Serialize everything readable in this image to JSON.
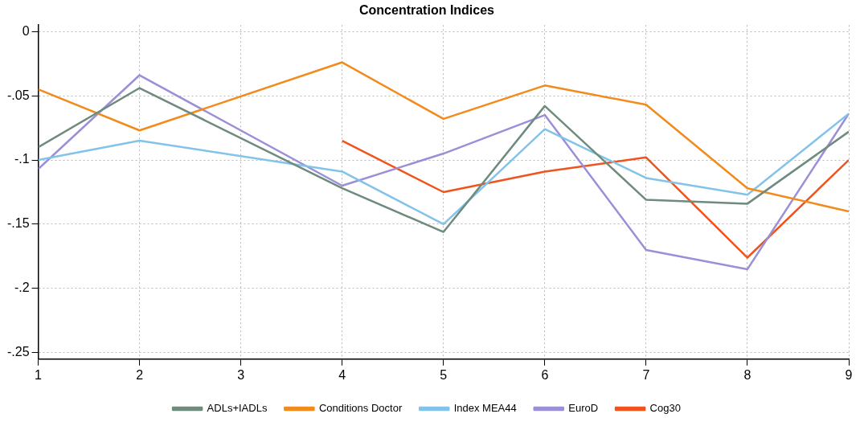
{
  "chart_data": {
    "type": "line",
    "title": "Concentration Indices",
    "x": [
      1,
      2,
      4,
      5,
      6,
      7,
      8,
      9
    ],
    "xlim": [
      1,
      9
    ],
    "xticks": [
      1,
      2,
      3,
      4,
      5,
      6,
      7,
      8,
      9
    ],
    "ylim": [
      -0.255,
      0.005
    ],
    "yticks": [
      {
        "value": -0.25,
        "label": "-.25"
      },
      {
        "value": -0.2,
        "label": "-.2"
      },
      {
        "value": -0.15,
        "label": "-.15"
      },
      {
        "value": -0.1,
        "label": "-.1"
      },
      {
        "value": -0.05,
        "label": "-.05"
      },
      0
    ],
    "series": [
      {
        "name": "ADLs+IADLs",
        "color": "#6e8b7d",
        "values": [
          -0.09,
          -0.044,
          -0.122,
          -0.156,
          -0.058,
          -0.131,
          -0.134,
          -0.078
        ]
      },
      {
        "name": "Conditions Doctor",
        "color": "#f28a1c",
        "values": [
          -0.045,
          -0.077,
          -0.024,
          -0.068,
          -0.042,
          -0.057,
          -0.122,
          -0.14
        ]
      },
      {
        "name": "Index MEA44",
        "color": "#83c3ea",
        "values": [
          -0.1,
          -0.085,
          -0.109,
          -0.15,
          -0.076,
          -0.114,
          -0.127,
          -0.064
        ]
      },
      {
        "name": "EuroD",
        "color": "#9b8fd8",
        "values": [
          -0.107,
          -0.034,
          -0.12,
          -0.095,
          -0.065,
          -0.17,
          -0.185,
          -0.064
        ]
      },
      {
        "name": "Cog30",
        "color": "#f0531c",
        "values": [
          null,
          null,
          -0.085,
          -0.125,
          -0.109,
          -0.098,
          -0.176,
          -0.1
        ]
      }
    ],
    "grid": true,
    "legend": "bottom",
    "marker": "none",
    "line_style": "solid"
  }
}
